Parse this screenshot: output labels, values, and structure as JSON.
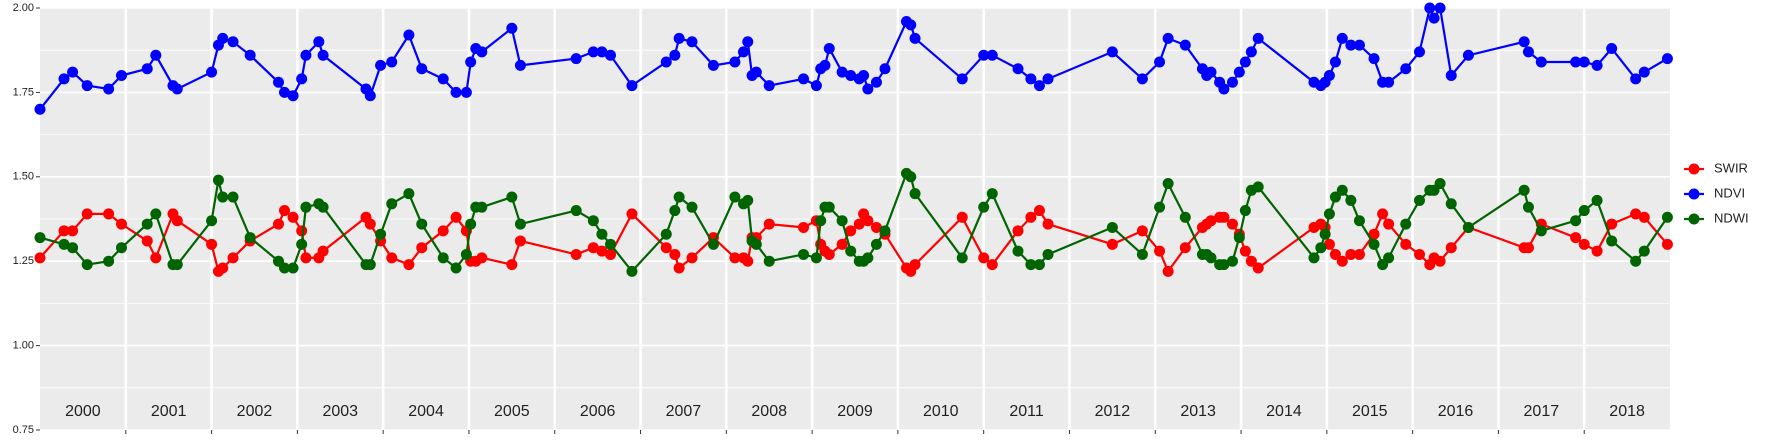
{
  "chart_data": {
    "type": "line",
    "x": [
      2000.0,
      2000.28,
      2000.38,
      2000.55,
      2000.8,
      2000.95,
      2001.25,
      2001.35,
      2001.55,
      2001.6,
      2002.0,
      2002.08,
      2002.13,
      2002.25,
      2002.45,
      2002.78,
      2002.85,
      2002.95,
      2003.05,
      2003.1,
      2003.25,
      2003.3,
      2003.8,
      2003.85,
      2003.97,
      2004.1,
      2004.3,
      2004.45,
      2004.7,
      2004.85,
      2004.97,
      2005.02,
      2005.08,
      2005.15,
      2005.5,
      2005.6,
      2006.25,
      2006.45,
      2006.55,
      2006.65,
      2006.9,
      2007.3,
      2007.4,
      2007.45,
      2007.6,
      2007.85,
      2008.1,
      2008.2,
      2008.25,
      2008.3,
      2008.35,
      2008.5,
      2008.9,
      2009.05,
      2009.1,
      2009.15,
      2009.2,
      2009.35,
      2009.45,
      2009.55,
      2009.6,
      2009.65,
      2009.75,
      2009.85,
      2010.1,
      2010.15,
      2010.2,
      2010.75,
      2011.0,
      2011.1,
      2011.4,
      2011.55,
      2011.65,
      2011.75,
      2012.5,
      2012.85,
      2013.05,
      2013.15,
      2013.35,
      2013.55,
      2013.6,
      2013.65,
      2013.75,
      2013.8,
      2013.9,
      2013.98,
      2014.05,
      2014.12,
      2014.2,
      2014.85,
      2014.93,
      2014.98,
      2015.03,
      2015.1,
      2015.18,
      2015.28,
      2015.38,
      2015.55,
      2015.65,
      2015.72,
      2015.92,
      2016.08,
      2016.2,
      2016.25,
      2016.32,
      2016.45,
      2016.65,
      2017.3,
      2017.35,
      2017.5,
      2017.9,
      2018.0,
      2018.15,
      2018.32,
      2018.6,
      2018.7,
      2018.97
    ],
    "series": [
      {
        "name": "SWIR",
        "color": "#ff0000",
        "values": [
          1.26,
          1.34,
          1.34,
          1.39,
          1.39,
          1.36,
          1.31,
          1.26,
          1.39,
          1.37,
          1.3,
          1.22,
          1.23,
          1.26,
          1.31,
          1.36,
          1.4,
          1.38,
          1.34,
          1.26,
          1.26,
          1.28,
          1.38,
          1.36,
          1.31,
          1.26,
          1.24,
          1.29,
          1.34,
          1.38,
          1.34,
          1.25,
          1.25,
          1.26,
          1.24,
          1.31,
          1.27,
          1.29,
          1.28,
          1.27,
          1.39,
          1.29,
          1.27,
          1.23,
          1.26,
          1.32,
          1.26,
          1.26,
          1.25,
          1.32,
          1.32,
          1.36,
          1.35,
          1.37,
          1.3,
          1.28,
          1.27,
          1.3,
          1.34,
          1.36,
          1.39,
          1.37,
          1.35,
          1.33,
          1.23,
          1.22,
          1.24,
          1.38,
          1.26,
          1.24,
          1.34,
          1.38,
          1.4,
          1.36,
          1.3,
          1.34,
          1.28,
          1.22,
          1.29,
          1.35,
          1.36,
          1.37,
          1.38,
          1.38,
          1.36,
          1.33,
          1.28,
          1.25,
          1.23,
          1.35,
          1.36,
          1.35,
          1.3,
          1.27,
          1.25,
          1.27,
          1.27,
          1.33,
          1.39,
          1.36,
          1.3,
          1.27,
          1.24,
          1.26,
          1.25,
          1.29,
          1.35,
          1.29,
          1.29,
          1.36,
          1.32,
          1.3,
          1.28,
          1.36,
          1.39,
          1.38,
          1.3
        ]
      },
      {
        "name": "NDVI",
        "color": "#0000ff",
        "values": [
          1.7,
          1.79,
          1.81,
          1.77,
          1.76,
          1.8,
          1.82,
          1.86,
          1.77,
          1.76,
          1.81,
          1.89,
          1.91,
          1.9,
          1.86,
          1.78,
          1.75,
          1.74,
          1.79,
          1.86,
          1.9,
          1.86,
          1.76,
          1.74,
          1.83,
          1.84,
          1.92,
          1.82,
          1.79,
          1.75,
          1.75,
          1.84,
          1.88,
          1.87,
          1.94,
          1.83,
          1.85,
          1.87,
          1.87,
          1.86,
          1.77,
          1.84,
          1.86,
          1.91,
          1.9,
          1.83,
          1.84,
          1.87,
          1.9,
          1.8,
          1.81,
          1.77,
          1.79,
          1.77,
          1.82,
          1.83,
          1.88,
          1.81,
          1.8,
          1.79,
          1.8,
          1.76,
          1.78,
          1.82,
          1.96,
          1.95,
          1.91,
          1.79,
          1.86,
          1.86,
          1.82,
          1.79,
          1.77,
          1.79,
          1.87,
          1.79,
          1.84,
          1.91,
          1.89,
          1.82,
          1.8,
          1.81,
          1.78,
          1.76,
          1.78,
          1.81,
          1.84,
          1.87,
          1.91,
          1.78,
          1.77,
          1.78,
          1.8,
          1.84,
          1.91,
          1.89,
          1.89,
          1.85,
          1.78,
          1.78,
          1.82,
          1.87,
          2.0,
          1.97,
          2.0,
          1.8,
          1.86,
          1.9,
          1.87,
          1.84,
          1.84,
          1.84,
          1.83,
          1.88,
          1.79,
          1.81,
          1.85
        ]
      },
      {
        "name": "NDWI",
        "color": "#006400",
        "values": [
          1.32,
          1.3,
          1.29,
          1.24,
          1.25,
          1.29,
          1.36,
          1.39,
          1.24,
          1.24,
          1.37,
          1.49,
          1.44,
          1.44,
          1.32,
          1.25,
          1.23,
          1.23,
          1.3,
          1.41,
          1.42,
          1.41,
          1.24,
          1.24,
          1.33,
          1.42,
          1.45,
          1.36,
          1.26,
          1.23,
          1.27,
          1.36,
          1.41,
          1.41,
          1.44,
          1.36,
          1.4,
          1.37,
          1.33,
          1.3,
          1.22,
          1.33,
          1.4,
          1.44,
          1.41,
          1.3,
          1.44,
          1.42,
          1.43,
          1.31,
          1.3,
          1.25,
          1.27,
          1.26,
          1.37,
          1.41,
          1.41,
          1.37,
          1.28,
          1.25,
          1.25,
          1.26,
          1.3,
          1.34,
          1.51,
          1.5,
          1.45,
          1.26,
          1.41,
          1.45,
          1.28,
          1.24,
          1.24,
          1.27,
          1.35,
          1.27,
          1.41,
          1.48,
          1.38,
          1.27,
          1.27,
          1.26,
          1.24,
          1.24,
          1.25,
          1.32,
          1.4,
          1.46,
          1.47,
          1.26,
          1.29,
          1.33,
          1.39,
          1.44,
          1.46,
          1.43,
          1.37,
          1.3,
          1.24,
          1.26,
          1.36,
          1.43,
          1.46,
          1.46,
          1.48,
          1.42,
          1.35,
          1.46,
          1.41,
          1.34,
          1.37,
          1.4,
          1.43,
          1.31,
          1.25,
          1.28,
          1.38
        ]
      }
    ],
    "xlim": [
      2000,
      2019
    ],
    "year_boundaries": [
      2001,
      2002,
      2003,
      2004,
      2005,
      2006,
      2007,
      2008,
      2009,
      2010,
      2011,
      2012,
      2013,
      2014,
      2015,
      2016,
      2017,
      2018
    ],
    "annotations": [
      {
        "text": "2000",
        "x": 2000.5
      },
      {
        "text": "2001",
        "x": 2001.5
      },
      {
        "text": "2002",
        "x": 2002.5
      },
      {
        "text": "2003",
        "x": 2003.5
      },
      {
        "text": "2004",
        "x": 2004.5
      },
      {
        "text": "2005",
        "x": 2005.5
      },
      {
        "text": "2006",
        "x": 2006.5
      },
      {
        "text": "2007",
        "x": 2007.5
      },
      {
        "text": "2008",
        "x": 2008.5
      },
      {
        "text": "2009",
        "x": 2009.5
      },
      {
        "text": "2010",
        "x": 2010.5
      },
      {
        "text": "2011",
        "x": 2011.5
      },
      {
        "text": "2012",
        "x": 2012.5
      },
      {
        "text": "2013",
        "x": 2013.5
      },
      {
        "text": "2014",
        "x": 2014.5
      },
      {
        "text": "2015",
        "x": 2015.5
      },
      {
        "text": "2016",
        "x": 2016.5
      },
      {
        "text": "2017",
        "x": 2017.5
      },
      {
        "text": "2018",
        "x": 2018.5
      }
    ],
    "ylim": [
      0.75,
      2.0
    ],
    "yticks": [
      {
        "value": 0.75,
        "label": "0.75"
      },
      {
        "value": 1.0,
        "label": "1.00"
      },
      {
        "value": 1.25,
        "label": "1.25"
      },
      {
        "value": 1.5,
        "label": "1.50"
      },
      {
        "value": 1.75,
        "label": "1.75"
      },
      {
        "value": 2.0,
        "label": "2.00"
      }
    ],
    "yminor": [
      0.875,
      1.125,
      1.375,
      1.625,
      1.875
    ],
    "grid": true,
    "legend": "right"
  }
}
